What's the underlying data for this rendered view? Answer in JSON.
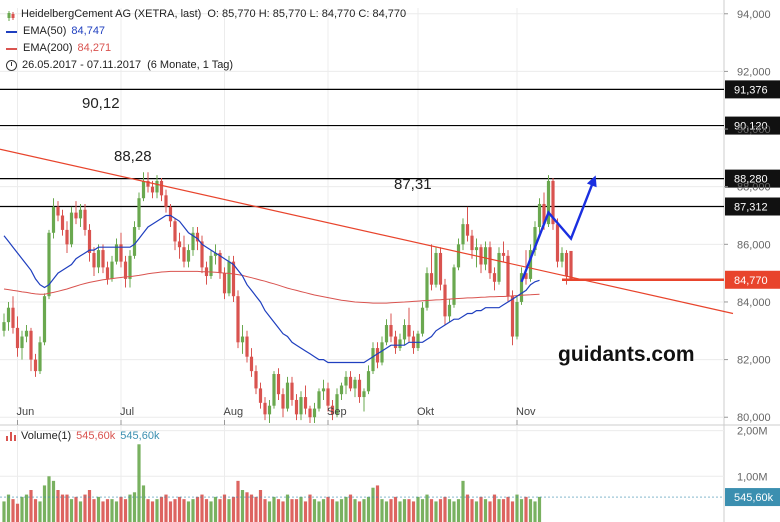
{
  "legend": {
    "title": "HeidelbergCement AG (XETRA, last)",
    "ohlc": "O: 85,770  H: 85,770  L: 84,770  C: 84,770",
    "ema50_label": "EMA(50)",
    "ema50_value": "84,747",
    "ema200_label": "EMA(200)",
    "ema200_value": "84,271",
    "period": "26.05.2017 - 07.11.2017",
    "period_detail": "(6 Monate, 1 Tag)"
  },
  "volume_legend": {
    "label": "Volume(1)",
    "value1": "545,60k",
    "value2": "545,60k"
  },
  "watermark": "guidants.com",
  "colors": {
    "up": "#6aa84f",
    "down": "#d9534f",
    "ema50": "#1f3fbf",
    "ema200": "#d9534f",
    "trendline": "#e8442c",
    "projection": "#1a2fe0",
    "level": "#000000",
    "last_price": "#e8442c",
    "volume_badge": "#3b8fb0"
  },
  "chart_data": {
    "type": "candlestick",
    "price_axis": {
      "ylim": [
        79.8,
        94.2
      ],
      "ticks": [
        "80,000",
        "82,000",
        "84,000",
        "86,000",
        "88,000",
        "90,000",
        "92,000",
        "94,000"
      ]
    },
    "x_axis": {
      "tick_labels": [
        "Jun",
        "Jul",
        "Aug",
        "Sep",
        "Okt",
        "Nov"
      ]
    },
    "horizontal_levels": [
      {
        "value": 91.376,
        "label": "91,376"
      },
      {
        "value": 90.12,
        "label": "90,120",
        "annotation": "90,12"
      },
      {
        "value": 88.28,
        "label": "88,280",
        "annotation": "88,28"
      },
      {
        "value": 87.312,
        "label": "87,312",
        "annotation": "87,31"
      }
    ],
    "last_price": {
      "value": 84.77,
      "label": "84,770"
    },
    "trendline": {
      "start": [
        0,
        89.3
      ],
      "end": [
        162,
        83.6
      ]
    },
    "projection_path": [
      [
        115,
        84.7
      ],
      [
        121,
        87.1
      ],
      [
        126,
        86.2
      ],
      [
        131,
        88.2
      ]
    ],
    "candles": [
      {
        "o": 83.0,
        "h": 83.6,
        "l": 82.8,
        "c": 83.3
      },
      {
        "o": 83.3,
        "h": 84.0,
        "l": 83.0,
        "c": 83.8
      },
      {
        "o": 83.8,
        "h": 84.2,
        "l": 82.9,
        "c": 83.1
      },
      {
        "o": 83.1,
        "h": 83.5,
        "l": 82.1,
        "c": 82.4
      },
      {
        "o": 82.4,
        "h": 83.0,
        "l": 82.0,
        "c": 82.8
      },
      {
        "o": 82.8,
        "h": 83.2,
        "l": 82.6,
        "c": 83.0
      },
      {
        "o": 83.0,
        "h": 83.1,
        "l": 81.6,
        "c": 82.0
      },
      {
        "o": 82.0,
        "h": 82.2,
        "l": 81.4,
        "c": 81.6
      },
      {
        "o": 81.6,
        "h": 82.8,
        "l": 81.5,
        "c": 82.6
      },
      {
        "o": 82.6,
        "h": 84.3,
        "l": 82.5,
        "c": 84.2
      },
      {
        "o": 84.2,
        "h": 86.5,
        "l": 84.1,
        "c": 86.4
      },
      {
        "o": 86.4,
        "h": 87.6,
        "l": 86.2,
        "c": 87.3
      },
      {
        "o": 87.3,
        "h": 87.5,
        "l": 86.8,
        "c": 87.0
      },
      {
        "o": 87.0,
        "h": 87.2,
        "l": 86.3,
        "c": 86.5
      },
      {
        "o": 86.5,
        "h": 86.8,
        "l": 85.7,
        "c": 86.0
      },
      {
        "o": 86.0,
        "h": 87.3,
        "l": 85.9,
        "c": 87.1
      },
      {
        "o": 87.1,
        "h": 87.5,
        "l": 86.7,
        "c": 86.9
      },
      {
        "o": 86.9,
        "h": 87.4,
        "l": 86.6,
        "c": 87.2
      },
      {
        "o": 87.2,
        "h": 87.4,
        "l": 86.3,
        "c": 86.5
      },
      {
        "o": 86.5,
        "h": 86.7,
        "l": 85.4,
        "c": 85.7
      },
      {
        "o": 85.7,
        "h": 85.9,
        "l": 84.9,
        "c": 85.2
      },
      {
        "o": 85.2,
        "h": 86.0,
        "l": 85.0,
        "c": 85.8
      },
      {
        "o": 85.8,
        "h": 86.0,
        "l": 85.0,
        "c": 85.2
      },
      {
        "o": 85.2,
        "h": 85.4,
        "l": 84.6,
        "c": 84.8
      },
      {
        "o": 84.8,
        "h": 85.6,
        "l": 84.7,
        "c": 85.4
      },
      {
        "o": 85.4,
        "h": 86.2,
        "l": 85.3,
        "c": 86.0
      },
      {
        "o": 86.0,
        "h": 86.4,
        "l": 85.2,
        "c": 85.4
      },
      {
        "o": 85.4,
        "h": 85.6,
        "l": 84.5,
        "c": 84.8
      },
      {
        "o": 84.8,
        "h": 85.8,
        "l": 84.5,
        "c": 85.6
      },
      {
        "o": 85.6,
        "h": 86.8,
        "l": 85.5,
        "c": 86.6
      },
      {
        "o": 86.6,
        "h": 87.8,
        "l": 86.5,
        "c": 87.6
      },
      {
        "o": 87.6,
        "h": 88.5,
        "l": 87.5,
        "c": 88.2
      },
      {
        "o": 88.2,
        "h": 88.5,
        "l": 87.8,
        "c": 88.0
      },
      {
        "o": 88.0,
        "h": 88.2,
        "l": 87.6,
        "c": 87.8
      },
      {
        "o": 87.8,
        "h": 88.4,
        "l": 87.6,
        "c": 88.2
      },
      {
        "o": 88.2,
        "h": 88.3,
        "l": 87.5,
        "c": 87.7
      },
      {
        "o": 87.7,
        "h": 87.9,
        "l": 87.1,
        "c": 87.3
      },
      {
        "o": 87.3,
        "h": 87.4,
        "l": 86.6,
        "c": 86.8
      },
      {
        "o": 86.8,
        "h": 86.9,
        "l": 85.8,
        "c": 86.1
      },
      {
        "o": 86.1,
        "h": 86.4,
        "l": 85.5,
        "c": 85.9
      },
      {
        "o": 85.9,
        "h": 86.3,
        "l": 85.2,
        "c": 85.4
      },
      {
        "o": 85.4,
        "h": 86.0,
        "l": 85.2,
        "c": 85.8
      },
      {
        "o": 85.8,
        "h": 86.6,
        "l": 85.6,
        "c": 86.4
      },
      {
        "o": 86.4,
        "h": 86.6,
        "l": 85.8,
        "c": 86.1
      },
      {
        "o": 86.1,
        "h": 86.3,
        "l": 85.0,
        "c": 85.2
      },
      {
        "o": 85.2,
        "h": 85.4,
        "l": 84.6,
        "c": 84.9
      },
      {
        "o": 84.9,
        "h": 85.8,
        "l": 84.8,
        "c": 85.6
      },
      {
        "o": 85.6,
        "h": 86.0,
        "l": 85.3,
        "c": 85.7
      },
      {
        "o": 85.7,
        "h": 85.8,
        "l": 84.8,
        "c": 85.0
      },
      {
        "o": 85.0,
        "h": 85.2,
        "l": 84.1,
        "c": 84.3
      },
      {
        "o": 84.3,
        "h": 85.6,
        "l": 84.2,
        "c": 85.4
      },
      {
        "o": 85.4,
        "h": 85.6,
        "l": 84.0,
        "c": 84.2
      },
      {
        "o": 84.2,
        "h": 84.4,
        "l": 82.4,
        "c": 82.6
      },
      {
        "o": 82.6,
        "h": 83.2,
        "l": 82.2,
        "c": 82.8
      },
      {
        "o": 82.8,
        "h": 83.0,
        "l": 81.9,
        "c": 82.1
      },
      {
        "o": 82.1,
        "h": 82.4,
        "l": 81.4,
        "c": 81.6
      },
      {
        "o": 81.6,
        "h": 81.8,
        "l": 80.8,
        "c": 81.0
      },
      {
        "o": 81.0,
        "h": 81.2,
        "l": 80.3,
        "c": 80.5
      },
      {
        "o": 80.5,
        "h": 80.7,
        "l": 79.9,
        "c": 80.1
      },
      {
        "o": 80.1,
        "h": 80.6,
        "l": 79.8,
        "c": 80.4
      },
      {
        "o": 80.4,
        "h": 81.6,
        "l": 80.3,
        "c": 81.5
      },
      {
        "o": 81.5,
        "h": 81.7,
        "l": 80.6,
        "c": 80.8
      },
      {
        "o": 80.8,
        "h": 81.0,
        "l": 80.0,
        "c": 80.3
      },
      {
        "o": 80.3,
        "h": 81.4,
        "l": 80.2,
        "c": 81.2
      },
      {
        "o": 81.2,
        "h": 81.4,
        "l": 80.4,
        "c": 80.6
      },
      {
        "o": 80.6,
        "h": 80.8,
        "l": 79.9,
        "c": 80.1
      },
      {
        "o": 80.1,
        "h": 80.9,
        "l": 79.9,
        "c": 80.7
      },
      {
        "o": 80.7,
        "h": 81.1,
        "l": 80.1,
        "c": 80.3
      },
      {
        "o": 80.3,
        "h": 80.4,
        "l": 79.8,
        "c": 80.0
      },
      {
        "o": 80.0,
        "h": 80.5,
        "l": 79.8,
        "c": 80.3
      },
      {
        "o": 80.3,
        "h": 81.0,
        "l": 80.2,
        "c": 80.9
      },
      {
        "o": 80.9,
        "h": 81.3,
        "l": 80.6,
        "c": 81.0
      },
      {
        "o": 81.0,
        "h": 81.2,
        "l": 80.2,
        "c": 80.4
      },
      {
        "o": 80.4,
        "h": 80.6,
        "l": 79.9,
        "c": 80.1
      },
      {
        "o": 80.1,
        "h": 81.0,
        "l": 80.0,
        "c": 80.8
      },
      {
        "o": 80.8,
        "h": 81.2,
        "l": 80.6,
        "c": 81.1
      },
      {
        "o": 81.1,
        "h": 81.6,
        "l": 80.8,
        "c": 81.4
      },
      {
        "o": 81.4,
        "h": 81.6,
        "l": 80.9,
        "c": 81.0
      },
      {
        "o": 81.0,
        "h": 81.4,
        "l": 80.7,
        "c": 81.3
      },
      {
        "o": 81.3,
        "h": 81.5,
        "l": 80.5,
        "c": 80.7
      },
      {
        "o": 80.7,
        "h": 81.0,
        "l": 80.2,
        "c": 80.9
      },
      {
        "o": 80.9,
        "h": 81.8,
        "l": 80.8,
        "c": 81.6
      },
      {
        "o": 81.6,
        "h": 82.6,
        "l": 81.5,
        "c": 82.4
      },
      {
        "o": 82.4,
        "h": 82.6,
        "l": 81.7,
        "c": 81.9
      },
      {
        "o": 81.9,
        "h": 82.8,
        "l": 81.8,
        "c": 82.6
      },
      {
        "o": 82.6,
        "h": 83.4,
        "l": 82.5,
        "c": 83.2
      },
      {
        "o": 83.2,
        "h": 83.6,
        "l": 82.6,
        "c": 82.8
      },
      {
        "o": 82.8,
        "h": 83.0,
        "l": 82.2,
        "c": 82.4
      },
      {
        "o": 82.4,
        "h": 82.9,
        "l": 82.3,
        "c": 82.7
      },
      {
        "o": 82.7,
        "h": 83.4,
        "l": 82.5,
        "c": 83.2
      },
      {
        "o": 83.2,
        "h": 83.8,
        "l": 82.6,
        "c": 82.8
      },
      {
        "o": 82.8,
        "h": 83.0,
        "l": 82.2,
        "c": 82.4
      },
      {
        "o": 82.4,
        "h": 83.0,
        "l": 82.3,
        "c": 82.9
      },
      {
        "o": 82.9,
        "h": 84.0,
        "l": 82.8,
        "c": 83.8
      },
      {
        "o": 83.8,
        "h": 85.2,
        "l": 83.7,
        "c": 85.0
      },
      {
        "o": 85.0,
        "h": 86.0,
        "l": 84.4,
        "c": 84.6
      },
      {
        "o": 84.6,
        "h": 85.9,
        "l": 84.5,
        "c": 85.7
      },
      {
        "o": 85.7,
        "h": 85.9,
        "l": 84.4,
        "c": 84.6
      },
      {
        "o": 84.6,
        "h": 84.8,
        "l": 83.2,
        "c": 83.5
      },
      {
        "o": 83.5,
        "h": 84.1,
        "l": 83.3,
        "c": 83.9
      },
      {
        "o": 83.9,
        "h": 85.3,
        "l": 83.8,
        "c": 85.2
      },
      {
        "o": 85.2,
        "h": 86.2,
        "l": 85.1,
        "c": 86.0
      },
      {
        "o": 86.0,
        "h": 86.9,
        "l": 85.8,
        "c": 86.7
      },
      {
        "o": 86.7,
        "h": 87.3,
        "l": 86.1,
        "c": 86.3
      },
      {
        "o": 86.3,
        "h": 86.5,
        "l": 85.5,
        "c": 85.8
      },
      {
        "o": 85.8,
        "h": 86.2,
        "l": 85.2,
        "c": 85.9
      },
      {
        "o": 85.9,
        "h": 86.0,
        "l": 85.0,
        "c": 85.3
      },
      {
        "o": 85.3,
        "h": 86.1,
        "l": 85.1,
        "c": 85.9
      },
      {
        "o": 85.9,
        "h": 86.1,
        "l": 84.8,
        "c": 85.0
      },
      {
        "o": 85.0,
        "h": 85.2,
        "l": 84.4,
        "c": 84.7
      },
      {
        "o": 84.7,
        "h": 85.9,
        "l": 84.6,
        "c": 85.7
      },
      {
        "o": 85.7,
        "h": 86.1,
        "l": 85.4,
        "c": 85.6
      },
      {
        "o": 85.6,
        "h": 85.8,
        "l": 84.0,
        "c": 84.2
      },
      {
        "o": 84.2,
        "h": 84.4,
        "l": 82.5,
        "c": 82.8
      },
      {
        "o": 82.8,
        "h": 84.2,
        "l": 82.7,
        "c": 84.0
      },
      {
        "o": 84.0,
        "h": 85.2,
        "l": 83.9,
        "c": 85.0
      },
      {
        "o": 85.0,
        "h": 85.8,
        "l": 84.6,
        "c": 84.8
      },
      {
        "o": 84.8,
        "h": 86.0,
        "l": 84.7,
        "c": 85.8
      },
      {
        "o": 85.8,
        "h": 86.8,
        "l": 85.6,
        "c": 86.6
      },
      {
        "o": 86.6,
        "h": 87.6,
        "l": 86.4,
        "c": 87.4
      },
      {
        "o": 87.4,
        "h": 87.8,
        "l": 86.5,
        "c": 86.7
      },
      {
        "o": 86.7,
        "h": 88.4,
        "l": 86.6,
        "c": 88.2
      },
      {
        "o": 88.2,
        "h": 88.3,
        "l": 86.5,
        "c": 86.7
      },
      {
        "o": 86.7,
        "h": 86.9,
        "l": 85.2,
        "c": 85.4
      },
      {
        "o": 85.4,
        "h": 85.9,
        "l": 85.2,
        "c": 85.7
      },
      {
        "o": 85.7,
        "h": 85.8,
        "l": 84.6,
        "c": 84.9
      },
      {
        "o": 85.77,
        "h": 85.77,
        "l": 84.77,
        "c": 84.77
      }
    ],
    "ema50": [
      86.3,
      86.1,
      85.9,
      85.7,
      85.5,
      85.3,
      85.1,
      84.8,
      84.6,
      84.5,
      84.6,
      84.8,
      85.0,
      85.1,
      85.2,
      85.3,
      85.5,
      85.6,
      85.7,
      85.8,
      85.8,
      85.9,
      85.9,
      85.9,
      85.9,
      85.9,
      85.9,
      85.9,
      85.9,
      86.0,
      86.2,
      86.4,
      86.6,
      86.7,
      86.8,
      86.9,
      87.0,
      87.0,
      86.9,
      86.8,
      86.6,
      86.4,
      86.3,
      86.2,
      86.0,
      85.9,
      85.8,
      85.7,
      85.6,
      85.5,
      85.4,
      85.3,
      85.1,
      84.9,
      84.6,
      84.4,
      84.2,
      84.0,
      83.7,
      83.5,
      83.3,
      83.1,
      82.9,
      82.8,
      82.6,
      82.5,
      82.4,
      82.3,
      82.2,
      82.1,
      82.0,
      82.0,
      81.9,
      81.9,
      81.9,
      81.9,
      81.9,
      81.9,
      81.9,
      81.9,
      81.9,
      82.0,
      82.1,
      82.2,
      82.3,
      82.4,
      82.5,
      82.5,
      82.5,
      82.5,
      82.6,
      82.6,
      82.6,
      82.6,
      82.7,
      82.8,
      83.0,
      83.1,
      83.2,
      83.3,
      83.4,
      83.4,
      83.5,
      83.6,
      83.6,
      83.7,
      83.7,
      83.8,
      83.8,
      83.8,
      83.8,
      83.9,
      84.0,
      84.1,
      84.2,
      84.3,
      84.4,
      84.6,
      84.7,
      84.75
    ],
    "ema200": [
      84.45,
      84.43,
      84.4,
      84.38,
      84.35,
      84.33,
      84.3,
      84.28,
      84.27,
      84.27,
      84.3,
      84.33,
      84.37,
      84.41,
      84.45,
      84.5,
      84.55,
      84.6,
      84.64,
      84.68,
      84.71,
      84.74,
      84.77,
      84.79,
      84.81,
      84.83,
      84.85,
      84.87,
      84.88,
      84.9,
      84.92,
      84.95,
      84.98,
      85.0,
      85.02,
      85.04,
      85.05,
      85.06,
      85.06,
      85.06,
      85.06,
      85.06,
      85.06,
      85.06,
      85.05,
      85.05,
      85.04,
      85.03,
      85.02,
      85.0,
      84.99,
      84.97,
      84.95,
      84.92,
      84.88,
      84.84,
      84.8,
      84.76,
      84.72,
      84.67,
      84.63,
      84.58,
      84.53,
      84.48,
      84.44,
      84.4,
      84.36,
      84.32,
      84.28,
      84.24,
      84.21,
      84.18,
      84.15,
      84.12,
      84.09,
      84.06,
      84.04,
      84.02,
      84.0,
      83.99,
      83.98,
      83.97,
      83.96,
      83.96,
      83.96,
      83.96,
      83.97,
      83.98,
      83.99,
      84.0,
      84.01,
      84.02,
      84.03,
      84.04,
      84.05,
      84.06,
      84.07,
      84.08,
      84.09,
      84.1,
      84.11,
      84.12,
      84.13,
      84.14,
      84.14,
      84.15,
      84.16,
      84.17,
      84.18,
      84.18,
      84.19,
      84.19,
      84.2,
      84.21,
      84.22,
      84.23,
      84.24,
      84.25,
      84.26,
      84.27
    ],
    "volume_axis": {
      "ylim": [
        0,
        2.1
      ],
      "ticks": [
        "1,00M",
        "2,00M"
      ]
    },
    "volume": [
      0.45,
      0.6,
      0.5,
      0.4,
      0.55,
      0.6,
      0.7,
      0.5,
      0.45,
      0.8,
      1.0,
      0.9,
      0.7,
      0.6,
      0.6,
      0.5,
      0.55,
      0.45,
      0.6,
      0.7,
      0.5,
      0.55,
      0.45,
      0.5,
      0.5,
      0.45,
      0.55,
      0.5,
      0.6,
      0.65,
      1.7,
      0.8,
      0.5,
      0.45,
      0.5,
      0.55,
      0.6,
      0.45,
      0.5,
      0.55,
      0.5,
      0.45,
      0.5,
      0.55,
      0.6,
      0.5,
      0.45,
      0.55,
      0.5,
      0.6,
      0.5,
      0.55,
      0.9,
      0.7,
      0.65,
      0.6,
      0.55,
      0.7,
      0.5,
      0.45,
      0.55,
      0.5,
      0.45,
      0.6,
      0.5,
      0.5,
      0.55,
      0.45,
      0.6,
      0.5,
      0.45,
      0.5,
      0.55,
      0.5,
      0.45,
      0.5,
      0.55,
      0.6,
      0.5,
      0.45,
      0.5,
      0.55,
      0.75,
      0.8,
      0.5,
      0.45,
      0.5,
      0.55,
      0.45,
      0.5,
      0.5,
      0.45,
      0.55,
      0.5,
      0.6,
      0.5,
      0.45,
      0.5,
      0.55,
      0.5,
      0.45,
      0.5,
      0.9,
      0.6,
      0.5,
      0.45,
      0.55,
      0.5,
      0.45,
      0.6,
      0.5,
      0.5,
      0.55,
      0.45,
      0.6,
      0.5,
      0.55,
      0.5,
      0.45,
      0.55
    ]
  }
}
